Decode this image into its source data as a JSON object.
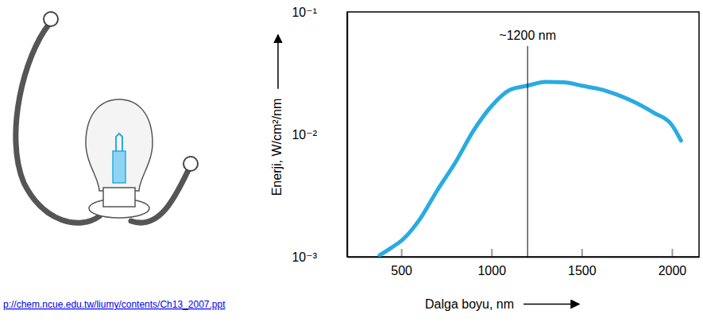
{
  "chart_data": {
    "type": "line",
    "x_label": "Dalga boyu, nm",
    "y_label": "Enerji, W/cm²/nm",
    "x": [
      380,
      450,
      500,
      600,
      700,
      800,
      900,
      1000,
      1100,
      1200,
      1300,
      1400,
      1500,
      1600,
      1700,
      1800,
      1900,
      2000,
      2050
    ],
    "values": [
      0.00103,
      0.0012,
      0.00135,
      0.002,
      0.0035,
      0.0059,
      0.0107,
      0.017,
      0.023,
      0.025,
      0.0268,
      0.0266,
      0.025,
      0.0234,
      0.021,
      0.0181,
      0.015,
      0.0119,
      0.0089
    ],
    "color": "#29abe2",
    "log": "y",
    "xlim": [
      200,
      2150
    ],
    "xticks": [
      500,
      1000,
      1500,
      2000
    ],
    "ylim": [
      0.001,
      0.1
    ],
    "yticks": [
      {
        "value": 0.001,
        "label": "10⁻³"
      },
      {
        "value": 0.01,
        "label": "10⁻²"
      },
      {
        "value": 0.1,
        "label": "10⁻¹"
      }
    ],
    "annotations": [
      {
        "x": 1200,
        "text": "~1200 nm"
      }
    ],
    "source": "p://chem.ncue.edu.tw/liumy/contents/Ch13_2007.ppt"
  }
}
